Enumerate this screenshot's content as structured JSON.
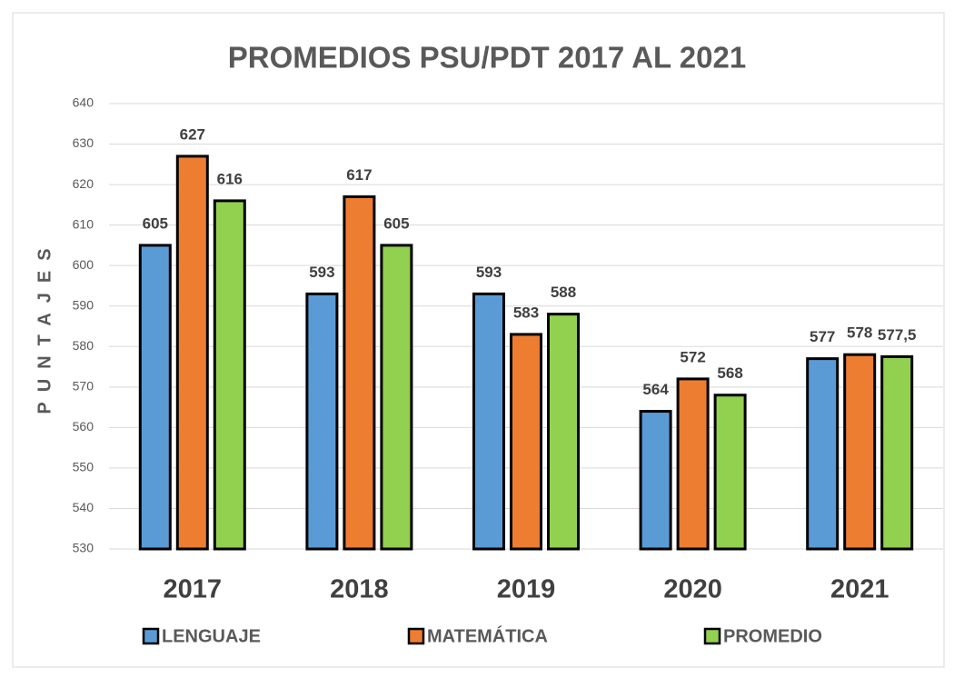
{
  "chart_data": {
    "type": "bar",
    "title": "PROMEDIOS PSU/PDT 2017 AL 2021",
    "y_label": "PUNTAJES",
    "categories": [
      "2017",
      "2018",
      "2019",
      "2020",
      "2021"
    ],
    "series": [
      {
        "name": "LENGUAJE",
        "color": "#5b9bd5",
        "values": [
          605,
          593,
          593,
          564,
          577
        ]
      },
      {
        "name": "MATEMÁTICA",
        "color": "#ed7d31",
        "values": [
          627,
          617,
          583,
          572,
          578
        ]
      },
      {
        "name": "PROMEDIO",
        "color": "#92d050",
        "values": [
          616,
          605,
          588,
          568,
          577.5
        ],
        "value_labels": [
          "616",
          "605",
          "588",
          "568",
          "577,5"
        ]
      }
    ],
    "ylim": [
      530,
      640
    ],
    "yticks": [
      530,
      540,
      550,
      560,
      570,
      580,
      590,
      600,
      610,
      620,
      630,
      640
    ],
    "grid": true,
    "legend": "bottom"
  }
}
